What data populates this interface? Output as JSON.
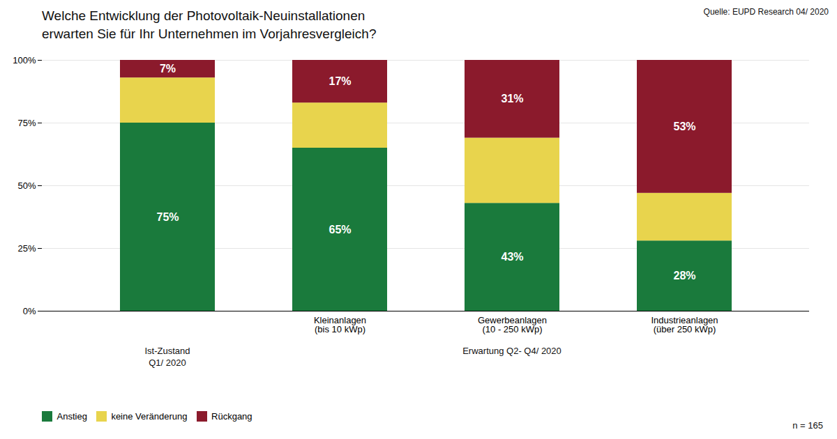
{
  "chart_data": {
    "type": "bar",
    "title": "Welche Entwicklung der Photovoltaik-Neuinstallationen\nerwarten Sie für Ihr Unternehmen im Vorjahresvergleich?",
    "source": "Quelle: EUPD Research 04/ 2020",
    "annotations": [
      "n = 165"
    ],
    "categories": [
      null,
      "Kleinanlagen\n(bis 10 kWp)",
      "Gewerbeanlagen\n(10 - 250 kWp)",
      "Industrieanlagen\n(über 250 kWp)"
    ],
    "groups": [
      "Ist-Zustand\nQ1/ 2020",
      "Erwartung Q2- Q4/ 2020",
      "Erwartung Q2- Q4/ 2020",
      "Erwartung Q2- Q4/ 2020"
    ],
    "stacked": true,
    "series": [
      {
        "name": "Anstieg",
        "color": "#1a7a3c",
        "values": [
          75,
          65,
          43,
          28
        ],
        "data_labels": true,
        "value_labels": [
          "75%",
          "65%",
          "43%",
          "28%"
        ]
      },
      {
        "name": "keine Veränderung",
        "color": "#e8d44d",
        "values": [
          18,
          18,
          26,
          19
        ],
        "data_labels": false
      },
      {
        "name": "Rückgang",
        "color": "#8b1a2c",
        "values": [
          7,
          17,
          31,
          53
        ],
        "data_labels": true,
        "value_labels": [
          "7%",
          "17%",
          "31%",
          "53%"
        ]
      }
    ],
    "ylim": [
      0,
      100
    ],
    "yticks": [
      {
        "value": 0,
        "label": "0%"
      },
      {
        "value": 25,
        "label": "25%"
      },
      {
        "value": 50,
        "label": "50%"
      },
      {
        "value": 75,
        "label": "75%"
      },
      {
        "value": 100,
        "label": "100%"
      }
    ],
    "grid": true,
    "legend": "lower left"
  }
}
